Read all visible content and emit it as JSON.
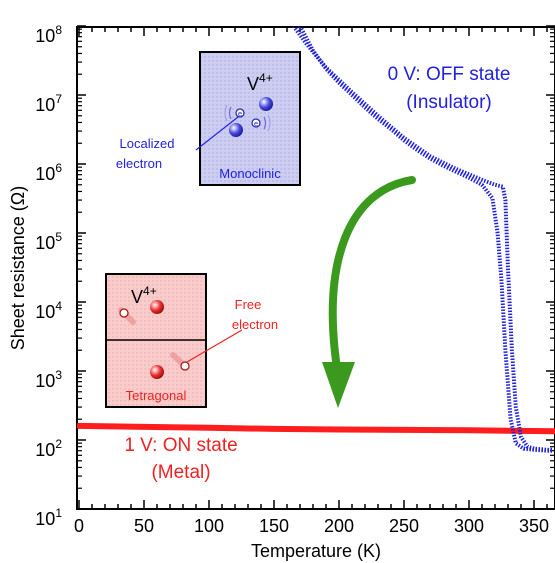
{
  "chart_data": {
    "type": "line",
    "xlabel": "Temperature (K)",
    "ylabel": "Sheet resistance (Ω)",
    "xlim": [
      0,
      365
    ],
    "ylim_log10": [
      1,
      8
    ],
    "x_ticks": [
      "0",
      "50",
      "100",
      "150",
      "200",
      "250",
      "300",
      "350"
    ],
    "y_tick_base": "10",
    "y_tick_exponents": [
      "1",
      "2",
      "3",
      "4",
      "5",
      "6",
      "7",
      "8"
    ],
    "y_scale": "log",
    "series": [
      {
        "name": "0 V: OFF state (Insulator)",
        "color": "#2323dd",
        "cooling": {
          "x": [
            170,
            180,
            190,
            200,
            210,
            220,
            230,
            240,
            250,
            260,
            270,
            280,
            290,
            300,
            310,
            318,
            322,
            325,
            328,
            332,
            336,
            342,
            350,
            360,
            365
          ],
          "y": [
            100000000,
            44000000,
            24000000,
            15000000,
            10000000,
            6600000,
            4500000,
            3200000,
            2200000,
            1600000,
            1200000,
            950000,
            770000,
            630000,
            500000,
            320000,
            100000,
            20000,
            2000,
            200,
            90,
            75,
            72,
            70,
            70
          ]
        },
        "heating": {
          "x": [
            165,
            175,
            190,
            210,
            230,
            250,
            270,
            290,
            310,
            320,
            326,
            328,
            330,
            333,
            336,
            340,
            345,
            350,
            360,
            365
          ],
          "y": [
            100000000,
            55000000,
            25000000,
            11000000,
            5000000,
            2400000,
            1300000,
            850000,
            590000,
            500000,
            470000,
            300000,
            30000,
            2000,
            300,
            110,
            80,
            75,
            72,
            72
          ]
        }
      },
      {
        "name": "1 V: ON state (Metal)",
        "color": "#ff1e1e",
        "x": [
          0,
          50,
          100,
          150,
          200,
          250,
          300,
          350,
          365
        ],
        "y": [
          160,
          155,
          150,
          145,
          142,
          140,
          138,
          135,
          134
        ]
      }
    ],
    "annotations": {
      "off_line1": "0 V: OFF state",
      "off_line2": "(Insulator)",
      "on_line1": "1 V: ON state",
      "on_line2": "(Metal)"
    },
    "inset_monoclinic": {
      "ion_base": "V",
      "ion_charge": "4+",
      "phase": "Monoclinic",
      "label_line1": "Localized",
      "label_line2": "electron",
      "electron_symbol": "e",
      "bg_color": "#c8c8f0"
    },
    "inset_tetragonal": {
      "ion_base": "V",
      "ion_charge": "4+",
      "phase": "Tetragonal",
      "label_line1": "Free",
      "label_line2": "electron",
      "bg_color": "#f8c8c8"
    },
    "arrow_color": "#3b9a1e"
  }
}
